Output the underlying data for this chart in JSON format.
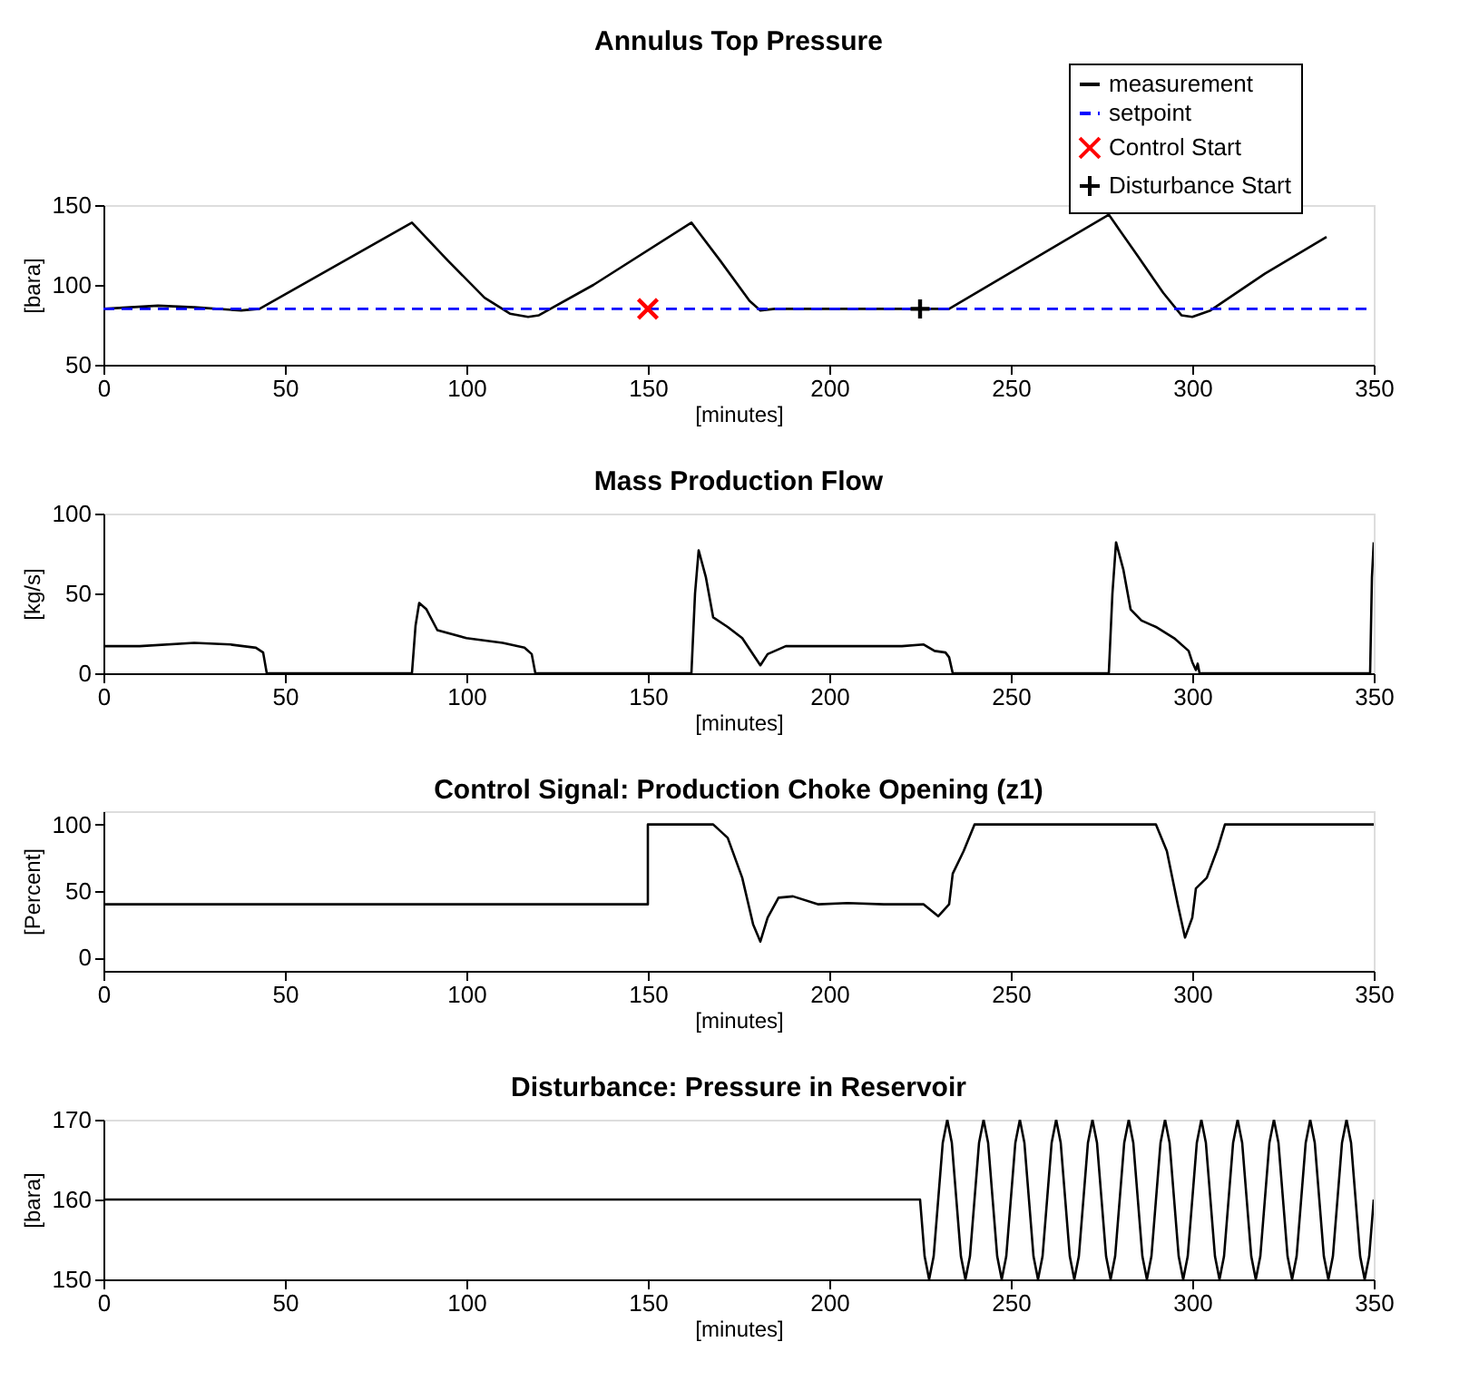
{
  "chart_data": [
    {
      "type": "line",
      "title": "Annulus Top Pressure",
      "xlabel": "[minutes]",
      "ylabel": "[bara]",
      "xlim": [
        0,
        350
      ],
      "xticks": [
        0,
        50,
        100,
        150,
        200,
        250,
        300,
        350
      ],
      "ylim": [
        50,
        150
      ],
      "yticks": [
        50,
        100,
        150
      ],
      "grid": false,
      "legend": "top right",
      "series": [
        {
          "name": "measurement",
          "type": "line",
          "color": "#000000",
          "line_style": "solid",
          "marker": "none",
          "x": [
            0,
            15,
            25,
            38,
            43,
            85,
            95,
            105,
            112,
            117,
            120,
            135,
            162,
            170,
            178,
            181,
            185,
            230,
            233,
            277,
            285,
            292,
            297,
            300,
            305,
            320,
            337
          ],
          "values": [
            85,
            87,
            86,
            84,
            85,
            139,
            115,
            92,
            82,
            80,
            81,
            100,
            139,
            115,
            90,
            84,
            85,
            85,
            85,
            144,
            118,
            95,
            81,
            80,
            84,
            107,
            130
          ]
        },
        {
          "name": "setpoint",
          "type": "line",
          "color": "#0000ff",
          "line_style": "dashed",
          "marker": "none",
          "x": [
            0,
            350
          ],
          "values": [
            85,
            85
          ]
        },
        {
          "name": "Control Start",
          "type": "scatter",
          "color": "#ff0000",
          "marker": "cross",
          "x": [
            150
          ],
          "values": [
            85
          ]
        },
        {
          "name": "Disturbance Start",
          "type": "scatter",
          "color": "#000000",
          "marker": "plus",
          "x": [
            225
          ],
          "values": [
            85
          ]
        }
      ]
    },
    {
      "type": "line",
      "title": "Mass Production Flow",
      "xlabel": "[minutes]",
      "ylabel": "[kg/s]",
      "xlim": [
        0,
        350
      ],
      "xticks": [
        0,
        50,
        100,
        150,
        200,
        250,
        300,
        350
      ],
      "ylim": [
        0,
        100
      ],
      "yticks": [
        0,
        50,
        100
      ],
      "grid": false,
      "series": [
        {
          "color": "#000000",
          "x": [
            0,
            10,
            25,
            35,
            42,
            44,
            45,
            85,
            86,
            87,
            89,
            92,
            100,
            110,
            116,
            118,
            119,
            162,
            163,
            164,
            166,
            168,
            172,
            176,
            181,
            183,
            188,
            200,
            220,
            226,
            229,
            232,
            233,
            234,
            277,
            278,
            279,
            281,
            283,
            286,
            290,
            295,
            299,
            300,
            301,
            301.5,
            302,
            349,
            349.5,
            350
          ],
          "values": [
            17,
            17,
            19,
            18,
            16,
            13,
            0,
            0,
            30,
            44,
            40,
            27,
            22,
            19,
            16,
            12,
            0,
            0,
            50,
            77,
            60,
            35,
            29,
            22,
            5,
            12,
            17,
            17,
            17,
            18,
            14,
            13,
            10,
            0,
            0,
            50,
            82,
            65,
            40,
            33,
            29,
            22,
            14,
            7,
            2,
            6,
            0,
            0,
            60,
            82
          ]
        }
      ]
    },
    {
      "type": "line",
      "title": "Control Signal: Production Choke Opening (z1)",
      "xlabel": "[minutes]",
      "ylabel": "[Percent]",
      "xlim": [
        0,
        350
      ],
      "xticks": [
        0,
        50,
        100,
        150,
        200,
        250,
        300,
        350
      ],
      "ylim": [
        -10,
        110
      ],
      "yticks": [
        0,
        50,
        100
      ],
      "grid": false,
      "series": [
        {
          "color": "#000000",
          "x": [
            0,
            150,
            150,
            168,
            172,
            176,
            179,
            181,
            183,
            186,
            190,
            197,
            205,
            215,
            226,
            230,
            233,
            234,
            237,
            240,
            290,
            293,
            296,
            298,
            300,
            301,
            304,
            307,
            309,
            350
          ],
          "values": [
            40,
            40,
            100,
            100,
            90,
            60,
            25,
            12,
            30,
            45,
            46,
            40,
            41,
            40,
            40,
            31,
            40,
            63,
            80,
            100,
            100,
            80,
            40,
            15,
            30,
            52,
            60,
            82,
            100,
            100
          ]
        }
      ]
    },
    {
      "type": "line",
      "title": "Disturbance: Pressure in Reservoir",
      "xlabel": "[minutes]",
      "ylabel": "[bara]",
      "xlim": [
        0,
        350
      ],
      "xticks": [
        0,
        50,
        100,
        150,
        200,
        250,
        300,
        350
      ],
      "ylim": [
        150,
        170
      ],
      "yticks": [
        150,
        160,
        170
      ],
      "grid": false,
      "series": [
        {
          "color": "#000000",
          "x": [
            0,
            225,
            226.25,
            227.5,
            228.75,
            230,
            231.25,
            232.5,
            233.75,
            235,
            236.25,
            237.5,
            238.75,
            240,
            241.25,
            242.5,
            243.75,
            245,
            246.25,
            247.5,
            248.75,
            250,
            251.25,
            252.5,
            253.75,
            255,
            256.25,
            257.5,
            258.75,
            260,
            261.25,
            262.5,
            263.75,
            265,
            266.25,
            267.5,
            268.75,
            270,
            271.25,
            272.5,
            273.75,
            275,
            276.25,
            277.5,
            278.75,
            280,
            281.25,
            282.5,
            283.75,
            285,
            286.25,
            287.5,
            288.75,
            290,
            291.25,
            292.5,
            293.75,
            295,
            296.25,
            297.5,
            298.75,
            300,
            301.25,
            302.5,
            303.75,
            305,
            306.25,
            307.5,
            308.75,
            310,
            311.25,
            312.5,
            313.75,
            315,
            316.25,
            317.5,
            318.75,
            320,
            321.25,
            322.5,
            323.75,
            325,
            326.25,
            327.5,
            328.75,
            330,
            331.25,
            332.5,
            333.75,
            335,
            336.25,
            337.5,
            338.75,
            340,
            341.25,
            342.5,
            343.75,
            345,
            346.25,
            347.5,
            348.75,
            350
          ],
          "values": [
            160,
            160,
            152.9,
            150,
            152.9,
            160,
            167.1,
            170,
            167.1,
            160,
            152.9,
            150,
            152.9,
            160,
            167.1,
            170,
            167.1,
            160,
            152.9,
            150,
            152.9,
            160,
            167.1,
            170,
            167.1,
            160,
            152.9,
            150,
            152.9,
            160,
            167.1,
            170,
            167.1,
            160,
            152.9,
            150,
            152.9,
            160,
            167.1,
            170,
            167.1,
            160,
            152.9,
            150,
            152.9,
            160,
            167.1,
            170,
            167.1,
            160,
            152.9,
            150,
            152.9,
            160,
            167.1,
            170,
            167.1,
            160,
            152.9,
            150,
            152.9,
            160,
            167.1,
            170,
            167.1,
            160,
            152.9,
            150,
            152.9,
            160,
            167.1,
            170,
            167.1,
            160,
            152.9,
            150,
            152.9,
            160,
            167.1,
            170,
            167.1,
            160,
            152.9,
            150,
            152.9,
            160,
            167.1,
            170,
            167.1,
            160,
            152.9,
            150,
            152.9,
            160,
            167.1,
            170,
            167.1,
            160,
            152.9,
            150,
            152.9,
            160
          ]
        }
      ]
    }
  ]
}
